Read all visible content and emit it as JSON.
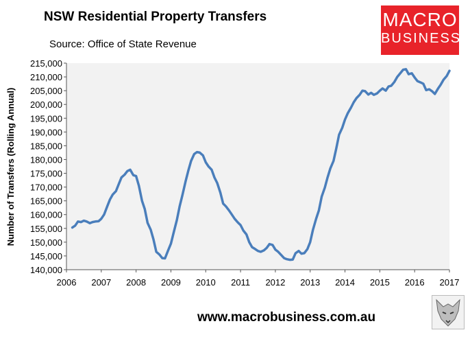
{
  "header": {
    "title": "NSW Residential Property Transfers",
    "subtitle": "Source: Office of State Revenue"
  },
  "logo": {
    "line1": "MACRO",
    "line2": "BUSINESS"
  },
  "footer": {
    "url": "www.macrobusiness.com.au"
  },
  "colors": {
    "line": "#4a7ebb",
    "plot_bg": "#f2f2f2",
    "logo_bg": "#e8232a"
  },
  "chart_data": {
    "type": "line",
    "title": "NSW Residential Property Transfers",
    "ylabel": "Number of Transfers (Rolling Annual)",
    "xlabel": "",
    "ylim": [
      140000,
      215000
    ],
    "xlim": [
      2006,
      2017
    ],
    "grid": false,
    "legend": "none",
    "xticks": [
      "2006",
      "2007",
      "2008",
      "2009",
      "2010",
      "2011",
      "2012",
      "2013",
      "2014",
      "2015",
      "2016",
      "2017"
    ],
    "yticks": [
      "140,000",
      "145,000",
      "150,000",
      "155,000",
      "160,000",
      "165,000",
      "170,000",
      "175,000",
      "180,000",
      "185,000",
      "190,000",
      "195,000",
      "200,000",
      "205,000",
      "210,000",
      "215,000"
    ],
    "series": [
      {
        "values": [
          [
            2006.17,
            155300
          ],
          [
            2006.25,
            156000
          ],
          [
            2006.33,
            157500
          ],
          [
            2006.42,
            157300
          ],
          [
            2006.5,
            157800
          ],
          [
            2006.58,
            157500
          ],
          [
            2006.67,
            156900
          ],
          [
            2006.75,
            157300
          ],
          [
            2006.83,
            157500
          ],
          [
            2006.92,
            157600
          ],
          [
            2007.0,
            158500
          ],
          [
            2007.08,
            160000
          ],
          [
            2007.17,
            163000
          ],
          [
            2007.25,
            165500
          ],
          [
            2007.33,
            167300
          ],
          [
            2007.42,
            168500
          ],
          [
            2007.5,
            171000
          ],
          [
            2007.58,
            173500
          ],
          [
            2007.67,
            174500
          ],
          [
            2007.75,
            175800
          ],
          [
            2007.83,
            176300
          ],
          [
            2007.92,
            174300
          ],
          [
            2008.0,
            174000
          ],
          [
            2008.08,
            170500
          ],
          [
            2008.17,
            165000
          ],
          [
            2008.25,
            162000
          ],
          [
            2008.33,
            157000
          ],
          [
            2008.42,
            154500
          ],
          [
            2008.5,
            151000
          ],
          [
            2008.58,
            146500
          ],
          [
            2008.67,
            145500
          ],
          [
            2008.75,
            144200
          ],
          [
            2008.83,
            144100
          ],
          [
            2008.92,
            147000
          ],
          [
            2009.0,
            149500
          ],
          [
            2009.08,
            153500
          ],
          [
            2009.17,
            158000
          ],
          [
            2009.25,
            163000
          ],
          [
            2009.33,
            167000
          ],
          [
            2009.42,
            172000
          ],
          [
            2009.5,
            176000
          ],
          [
            2009.58,
            179500
          ],
          [
            2009.67,
            182000
          ],
          [
            2009.75,
            182700
          ],
          [
            2009.83,
            182500
          ],
          [
            2009.92,
            181500
          ],
          [
            2010.0,
            179000
          ],
          [
            2010.08,
            177500
          ],
          [
            2010.17,
            176300
          ],
          [
            2010.25,
            173500
          ],
          [
            2010.33,
            171500
          ],
          [
            2010.42,
            168000
          ],
          [
            2010.5,
            164000
          ],
          [
            2010.58,
            163000
          ],
          [
            2010.67,
            161500
          ],
          [
            2010.75,
            160000
          ],
          [
            2010.83,
            158500
          ],
          [
            2010.92,
            157200
          ],
          [
            2011.0,
            156200
          ],
          [
            2011.08,
            154200
          ],
          [
            2011.17,
            152800
          ],
          [
            2011.25,
            150000
          ],
          [
            2011.33,
            148200
          ],
          [
            2011.42,
            147500
          ],
          [
            2011.5,
            146800
          ],
          [
            2011.58,
            146500
          ],
          [
            2011.67,
            147000
          ],
          [
            2011.75,
            147900
          ],
          [
            2011.83,
            149300
          ],
          [
            2011.92,
            149000
          ],
          [
            2012.0,
            147300
          ],
          [
            2012.08,
            146500
          ],
          [
            2012.17,
            145300
          ],
          [
            2012.25,
            144200
          ],
          [
            2012.33,
            143800
          ],
          [
            2012.42,
            143600
          ],
          [
            2012.5,
            143700
          ],
          [
            2012.58,
            146000
          ],
          [
            2012.67,
            146800
          ],
          [
            2012.75,
            145800
          ],
          [
            2012.83,
            146000
          ],
          [
            2012.92,
            147500
          ],
          [
            2013.0,
            150000
          ],
          [
            2013.08,
            154500
          ],
          [
            2013.17,
            158500
          ],
          [
            2013.25,
            161500
          ],
          [
            2013.33,
            166500
          ],
          [
            2013.42,
            169800
          ],
          [
            2013.5,
            173500
          ],
          [
            2013.58,
            176800
          ],
          [
            2013.67,
            179500
          ],
          [
            2013.75,
            184000
          ],
          [
            2013.83,
            189000
          ],
          [
            2013.92,
            191500
          ],
          [
            2014.0,
            194500
          ],
          [
            2014.08,
            196800
          ],
          [
            2014.17,
            198800
          ],
          [
            2014.25,
            200800
          ],
          [
            2014.33,
            202300
          ],
          [
            2014.42,
            203500
          ],
          [
            2014.5,
            205000
          ],
          [
            2014.58,
            204800
          ],
          [
            2014.67,
            203600
          ],
          [
            2014.75,
            204200
          ],
          [
            2014.83,
            203500
          ],
          [
            2014.92,
            204000
          ],
          [
            2015.0,
            205000
          ],
          [
            2015.08,
            205800
          ],
          [
            2015.17,
            205000
          ],
          [
            2015.25,
            206500
          ],
          [
            2015.33,
            206800
          ],
          [
            2015.42,
            208200
          ],
          [
            2015.5,
            210000
          ],
          [
            2015.58,
            211200
          ],
          [
            2015.67,
            212600
          ],
          [
            2015.75,
            212800
          ],
          [
            2015.83,
            211000
          ],
          [
            2015.92,
            211300
          ],
          [
            2016.0,
            209800
          ],
          [
            2016.08,
            208500
          ],
          [
            2016.17,
            208000
          ],
          [
            2016.25,
            207500
          ],
          [
            2016.33,
            205200
          ],
          [
            2016.42,
            205500
          ],
          [
            2016.5,
            204800
          ],
          [
            2016.58,
            203800
          ],
          [
            2016.67,
            205700
          ],
          [
            2016.75,
            207200
          ],
          [
            2016.83,
            209000
          ],
          [
            2016.92,
            210300
          ],
          [
            2017.0,
            212200
          ]
        ]
      }
    ]
  }
}
